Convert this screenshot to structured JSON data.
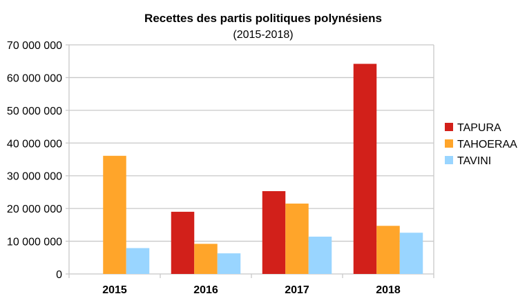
{
  "chart_data": {
    "type": "bar",
    "title": "Recettes des partis politiques polynésiens",
    "subtitle": "(2015-2018)",
    "xlabel": "",
    "ylabel": "",
    "categories": [
      "2015",
      "2016",
      "2017",
      "2018"
    ],
    "ylim": [
      0,
      70000000
    ],
    "yticks": [
      0,
      10000000,
      20000000,
      30000000,
      40000000,
      50000000,
      60000000,
      70000000
    ],
    "ytick_labels": [
      "0",
      "10 000 000",
      "20 000 000",
      "30 000 000",
      "40 000 000",
      "50 000 000",
      "60 000 000",
      "70 000 000"
    ],
    "grid": true,
    "legend_position": "right",
    "series": [
      {
        "name": "TAPURA",
        "color": "#d2201a",
        "values": [
          0,
          19000000,
          25300000,
          64200000
        ]
      },
      {
        "name": "TAHOERAA",
        "color": "#ffa52a",
        "values": [
          36100000,
          9200000,
          21500000,
          14700000
        ]
      },
      {
        "name": "TAVINI",
        "color": "#99d5ff",
        "values": [
          7900000,
          6300000,
          11400000,
          12600000
        ]
      }
    ]
  }
}
